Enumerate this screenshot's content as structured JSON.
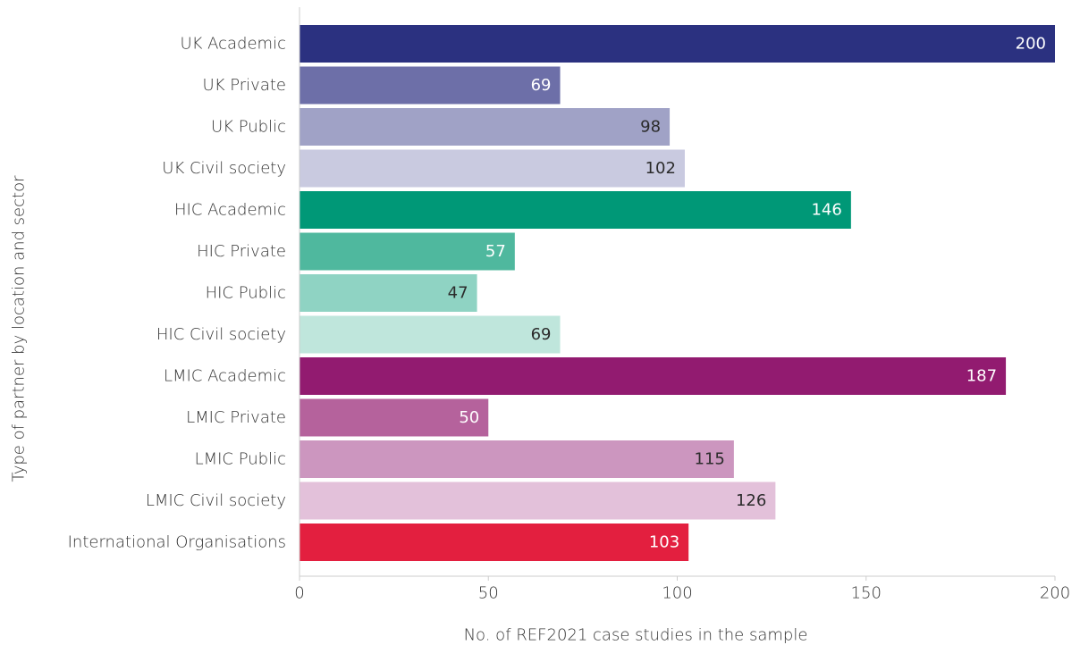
{
  "chart_data": {
    "type": "bar",
    "orientation": "horizontal",
    "title": "",
    "xlabel": "No. of REF2021 case studies in the sample",
    "ylabel": "Type of partner by location and sector",
    "xlim": [
      0,
      200
    ],
    "xticks": [
      0,
      50,
      100,
      150,
      200
    ],
    "grid": false,
    "categories": [
      "UK Academic",
      "UK Private",
      "UK Public",
      "UK Civil society",
      "HIC Academic",
      "HIC Private",
      "HIC Public",
      "HIC Civil society",
      "LMIC Academic",
      "LMIC Private",
      "LMIC Public",
      "LMIC Civil society",
      "International Organisations"
    ],
    "values": [
      200,
      69,
      98,
      102,
      146,
      57,
      47,
      69,
      187,
      50,
      115,
      126,
      103
    ],
    "bar_colors": [
      "#2b3180",
      "#6d6fa8",
      "#a0a2c6",
      "#c9cae0",
      "#009877",
      "#4fb89e",
      "#8fd3c3",
      "#bfe6dc",
      "#921b70",
      "#b5629c",
      "#cc96bf",
      "#e3c1da",
      "#e31f3f"
    ],
    "label_colors": [
      "#ffffff",
      "#ffffff",
      "#2b2b2b",
      "#2b2b2b",
      "#ffffff",
      "#ffffff",
      "#2b2b2b",
      "#2b2b2b",
      "#ffffff",
      "#ffffff",
      "#2b2b2b",
      "#2b2b2b",
      "#ffffff"
    ],
    "axis_color": "#cccccc"
  }
}
